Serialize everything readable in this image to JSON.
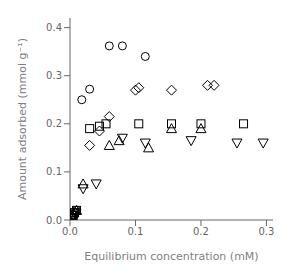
{
  "chart_data": {
    "type": "scatter",
    "xlabel": "Equilibrium concentration (mM)",
    "ylabel": "Amount adsorbed (mmol g⁻¹)",
    "xlim": [
      0,
      0.31
    ],
    "ylim": [
      0,
      0.42
    ],
    "xticks": [
      {
        "value": 0,
        "label": "0.0"
      },
      0.1,
      0.2,
      0.3
    ],
    "yticks": [
      {
        "value": 0,
        "label": "0.0"
      },
      0.1,
      0.2,
      0.3,
      0.4
    ],
    "grid": false,
    "color": "black",
    "series": [
      {
        "marker": "circle",
        "x": [
          0.003,
          0.005,
          0.008,
          0.01,
          0.018,
          0.03,
          0.06,
          0.08,
          0.115
        ],
        "values": [
          0.005,
          0.01,
          0.015,
          0.02,
          0.25,
          0.272,
          0.362,
          0.362,
          0.34
        ]
      },
      {
        "marker": "square",
        "x": [
          0.003,
          0.005,
          0.007,
          0.01,
          0.03,
          0.045,
          0.055,
          0.105,
          0.155,
          0.2,
          0.265
        ],
        "values": [
          0.005,
          0.01,
          0.015,
          0.02,
          0.19,
          0.195,
          0.2,
          0.2,
          0.2,
          0.2,
          0.2
        ]
      },
      {
        "marker": "diamond",
        "x": [
          0.003,
          0.005,
          0.007,
          0.03,
          0.045,
          0.06,
          0.1,
          0.105,
          0.155,
          0.21,
          0.22
        ],
        "values": [
          0.005,
          0.01,
          0.015,
          0.155,
          0.185,
          0.215,
          0.27,
          0.275,
          0.27,
          0.28,
          0.28
        ]
      },
      {
        "marker": "triangle",
        "x": [
          0.003,
          0.005,
          0.01,
          0.02,
          0.06,
          0.075,
          0.12,
          0.155,
          0.2
        ],
        "values": [
          0.01,
          0.015,
          0.02,
          0.075,
          0.155,
          0.165,
          0.15,
          0.19,
          0.19
        ]
      },
      {
        "marker": "triangle-down",
        "x": [
          0.003,
          0.005,
          0.008,
          0.02,
          0.04,
          0.08,
          0.115,
          0.185,
          0.255,
          0.295
        ],
        "values": [
          0.005,
          0.01,
          0.015,
          0.065,
          0.075,
          0.17,
          0.16,
          0.165,
          0.16,
          0.16
        ]
      }
    ]
  }
}
